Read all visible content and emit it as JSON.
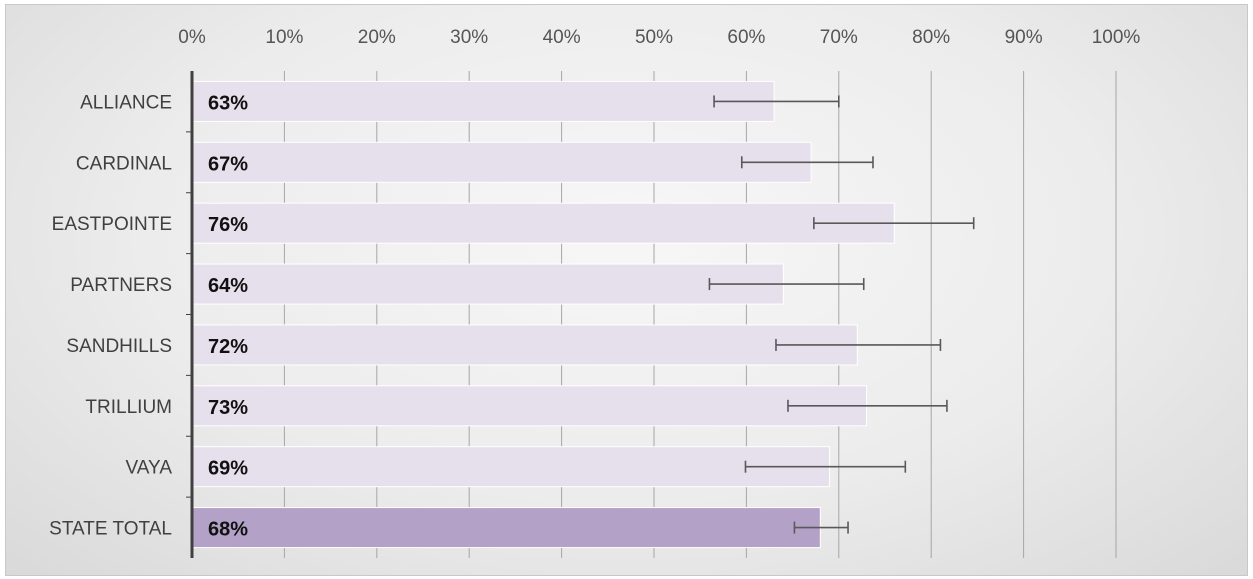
{
  "chart_data": {
    "type": "bar",
    "orientation": "horizontal",
    "categories": [
      "ALLIANCE",
      "CARDINAL",
      "EASTPOINTE",
      "PARTNERS",
      "SANDHILLS",
      "TRILLIUM",
      "VAYA",
      "STATE TOTAL"
    ],
    "values": [
      63,
      67,
      76,
      64,
      72,
      73,
      69,
      68
    ],
    "data_labels": [
      "63%",
      "67%",
      "76%",
      "64%",
      "72%",
      "73%",
      "69%",
      "68%"
    ],
    "error_low": [
      56.5,
      59.5,
      67.3,
      56,
      63.2,
      64.5,
      59.9,
      65.2
    ],
    "error_high": [
      70,
      73.7,
      84.6,
      72.7,
      81,
      81.7,
      77.2,
      71
    ],
    "xlim": [
      0,
      100
    ],
    "x_ticks": [
      0,
      10,
      20,
      30,
      40,
      50,
      60,
      70,
      80,
      90,
      100
    ],
    "x_tick_labels": [
      "0%",
      "10%",
      "20%",
      "30%",
      "40%",
      "50%",
      "60%",
      "70%",
      "80%",
      "90%",
      "100%"
    ],
    "x_axis_position": "top",
    "grid": true,
    "colors": {
      "bar": "#e6dfec",
      "highlight_bar": "#b4a1c8",
      "error_bar": "#595959",
      "grid": "#a6a6a6",
      "axis": "#404040"
    }
  }
}
